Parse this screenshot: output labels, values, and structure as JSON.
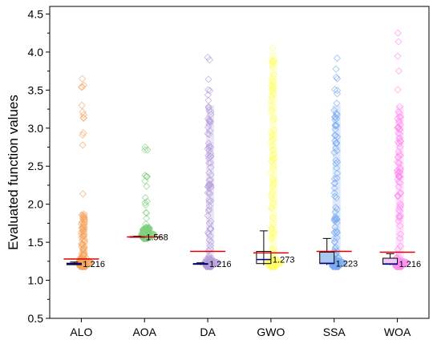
{
  "chart_data": {
    "type": "box-scatter",
    "title": "",
    "xlabel": "",
    "ylabel": "Evaluated function values",
    "ylim": [
      0.5,
      4.6
    ],
    "yticks": [
      0.5,
      1.0,
      1.5,
      2.0,
      2.5,
      3.0,
      3.5,
      4.0,
      4.5
    ],
    "ytick_labels": [
      "0.5",
      "1.0",
      "1.5",
      "2.0",
      "2.5",
      "3.0",
      "3.5",
      "4.0",
      "4.5"
    ],
    "grid": false,
    "categories": [
      "ALO",
      "AOA",
      "DA",
      "GWO",
      "SSA",
      "WOA"
    ],
    "series": [
      {
        "category": "ALO",
        "color": "#f4a460",
        "median": 1.216,
        "median_label": "1.216",
        "box": [
          1.205,
          1.225
        ],
        "whisker": [
          1.2,
          1.24
        ],
        "mean": 1.28,
        "scatter_range": [
          1.18,
          3.65
        ],
        "scatter_dense_max": 1.9
      },
      {
        "category": "AOA",
        "color": "#7fcf7f",
        "median": 1.568,
        "median_label": "1.568",
        "box": [
          1.565,
          1.575
        ],
        "whisker": [
          1.56,
          1.58
        ],
        "mean": 1.57,
        "scatter_range": [
          1.55,
          2.75
        ],
        "scatter_dense_max": 1.7
      },
      {
        "category": "DA",
        "color": "#b39ddb",
        "median": 1.216,
        "median_label": "1.216",
        "box": [
          1.21,
          1.22
        ],
        "whisker": [
          1.2,
          1.23
        ],
        "mean": 1.38,
        "scatter_range": [
          1.18,
          3.93
        ],
        "scatter_dense_max": 3.3
      },
      {
        "category": "GWO",
        "color": "#ffff66",
        "median": 1.273,
        "median_label": "1.273",
        "box": [
          1.22,
          1.38
        ],
        "whisker": [
          1.2,
          1.65
        ],
        "mean": 1.36,
        "scatter_range": [
          1.18,
          4.05
        ],
        "scatter_dense_max": 4.0
      },
      {
        "category": "SSA",
        "color": "#7aaaf0",
        "median": 1.223,
        "median_label": "1.223",
        "box": [
          1.22,
          1.37
        ],
        "whisker": [
          1.2,
          1.55
        ],
        "mean": 1.38,
        "scatter_range": [
          1.18,
          3.92
        ],
        "scatter_dense_max": 3.3
      },
      {
        "category": "WOA",
        "color": "#ff8cf0",
        "median": 1.216,
        "median_label": "1.216",
        "box": [
          1.21,
          1.29
        ],
        "whisker": [
          1.2,
          1.35
        ],
        "mean": 1.37,
        "scatter_range": [
          1.18,
          4.25
        ],
        "scatter_dense_max": 3.3
      }
    ],
    "colors": {
      "mean_line": "#e00000",
      "box_border": "#000000",
      "median_line": "#00008b",
      "box_fill": "#a8c8f0"
    }
  }
}
